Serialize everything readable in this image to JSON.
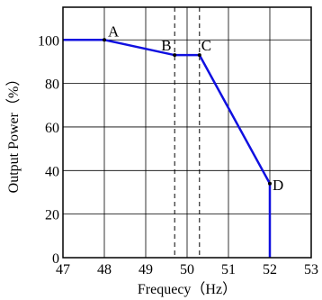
{
  "chart_data": {
    "type": "line",
    "xlabel": "Frequecy（Hz）",
    "ylabel": "Output Power（%）",
    "xlim": [
      47,
      53
    ],
    "ylim": [
      0,
      115
    ],
    "x_ticks": [
      47,
      48,
      49,
      50,
      51,
      52,
      53
    ],
    "x_tick_labels": [
      "47",
      "48",
      "49",
      "50",
      "51",
      "52",
      "53"
    ],
    "y_ticks": [
      0,
      20,
      40,
      60,
      80,
      100
    ],
    "y_tick_labels": [
      "0",
      "20",
      "40",
      "60",
      "80",
      "100"
    ],
    "grid": true,
    "series": [
      {
        "color": "#1010e0",
        "points": [
          {
            "x": 47,
            "y": 100
          },
          {
            "x": 48,
            "y": 100
          },
          {
            "x": 49.7,
            "y": 93
          },
          {
            "x": 50.3,
            "y": 93
          },
          {
            "x": 52,
            "y": 34
          },
          {
            "x": 52,
            "y": 0
          }
        ]
      }
    ],
    "reference_lines": [
      {
        "x": 49.7,
        "style": "dashed"
      },
      {
        "x": 50.3,
        "style": "dashed"
      }
    ],
    "annotations": [
      {
        "text": "A",
        "x": 48,
        "y": 100
      },
      {
        "text": "B",
        "x": 49.7,
        "y": 93
      },
      {
        "text": "C",
        "x": 50.3,
        "y": 93
      },
      {
        "text": "D",
        "x": 52,
        "y": 34
      }
    ]
  }
}
